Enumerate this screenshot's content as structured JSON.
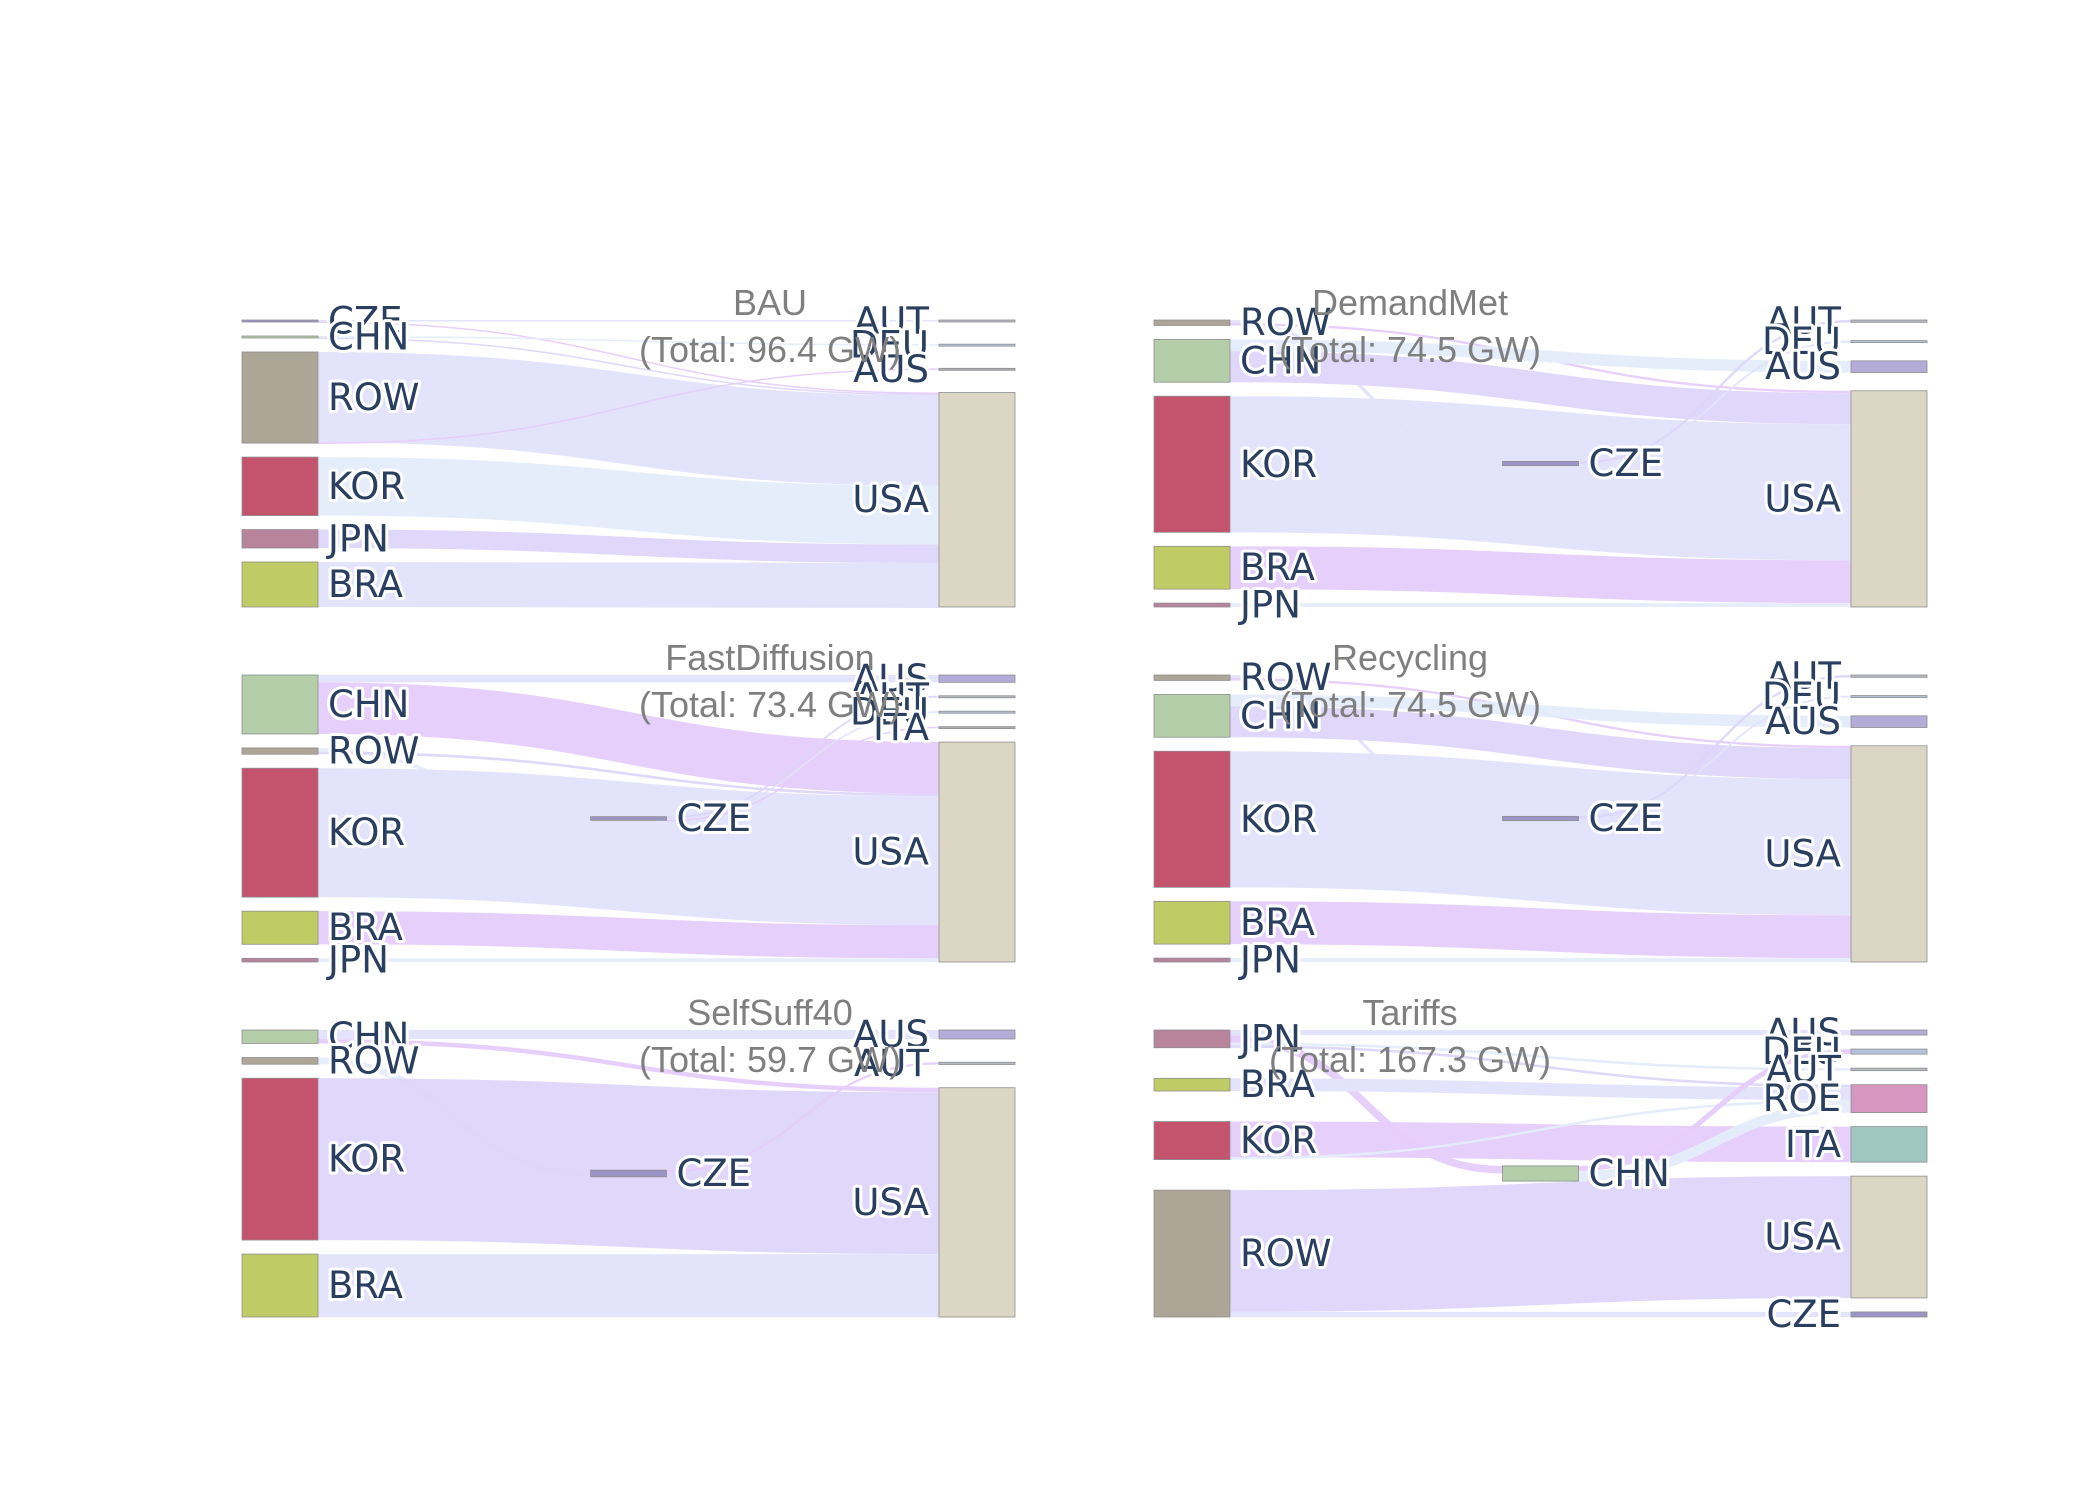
{
  "chart_data": [
    {
      "type": "sankey",
      "title": "BAU",
      "subtitle": "(Total: 96.4 GW)",
      "nodes": [
        {
          "id": "CZE",
          "label": "CZE",
          "col": 0,
          "color": "#9b94c6"
        },
        {
          "id": "CHN",
          "label": "CHN",
          "col": 0,
          "color": "#b3cea8"
        },
        {
          "id": "ROW",
          "label": "ROW",
          "col": 0,
          "color": "#ada596"
        },
        {
          "id": "KOR",
          "label": "KOR",
          "col": 0,
          "color": "#c4546e"
        },
        {
          "id": "JPN",
          "label": "JPN",
          "col": 0,
          "color": "#b7849b"
        },
        {
          "id": "BRA",
          "label": "BRA",
          "col": 0,
          "color": "#bfcb64"
        },
        {
          "id": "AUT",
          "label": "AUT",
          "col": 2,
          "color": "#b6bac4"
        },
        {
          "id": "DEU",
          "label": "DEU",
          "col": 2,
          "color": "#b3c3dc"
        },
        {
          "id": "AUS",
          "label": "AUS",
          "col": 2,
          "color": "#aaacb1"
        },
        {
          "id": "USA",
          "label": "USA",
          "col": 2,
          "color": "#dcd7c4"
        }
      ],
      "links": [
        {
          "source": "CZE",
          "target": "AUT",
          "value": 0.5
        },
        {
          "source": "CZE",
          "target": "USA",
          "value": 0.4
        },
        {
          "source": "CHN",
          "target": "DEU",
          "value": 0.3
        },
        {
          "source": "CHN",
          "target": "USA",
          "value": 0.5
        },
        {
          "source": "ROW",
          "target": "USA",
          "value": 40.2
        },
        {
          "source": "ROW",
          "target": "AUS",
          "value": 0.3
        },
        {
          "source": "KOR",
          "target": "USA",
          "value": 26
        },
        {
          "source": "JPN",
          "target": "USA",
          "value": 8.2
        },
        {
          "source": "BRA",
          "target": "USA",
          "value": 20
        }
      ]
    },
    {
      "type": "sankey",
      "title": "DemandMet",
      "subtitle": "(Total: 74.5 GW)",
      "nodes": [
        {
          "id": "ROW",
          "label": "ROW",
          "col": 0,
          "color": "#ada596"
        },
        {
          "id": "CHN",
          "label": "CHN",
          "col": 0,
          "color": "#b3cea8"
        },
        {
          "id": "KOR",
          "label": "KOR",
          "col": 0,
          "color": "#c4546e"
        },
        {
          "id": "BRA",
          "label": "BRA",
          "col": 0,
          "color": "#bfcb64"
        },
        {
          "id": "JPN",
          "label": "JPN",
          "col": 0,
          "color": "#b7849b"
        },
        {
          "id": "CZE",
          "label": "CZE",
          "col": 1,
          "color": "#9b94c6"
        },
        {
          "id": "AUT",
          "label": "AUT",
          "col": 2,
          "color": "#b6bac4"
        },
        {
          "id": "DEU",
          "label": "DEU",
          "col": 2,
          "color": "#b3c3dc"
        },
        {
          "id": "AUS",
          "label": "AUS",
          "col": 2,
          "color": "#b3acd8"
        },
        {
          "id": "USA",
          "label": "USA",
          "col": 2,
          "color": "#dcd7c4"
        }
      ],
      "links": [
        {
          "source": "ROW",
          "target": "CZE",
          "value": 0.8
        },
        {
          "source": "ROW",
          "target": "USA",
          "value": 0.6
        },
        {
          "source": "CHN",
          "target": "AUS",
          "value": 3
        },
        {
          "source": "CHN",
          "target": "USA",
          "value": 8
        },
        {
          "source": "KOR",
          "target": "USA",
          "value": 35
        },
        {
          "source": "BRA",
          "target": "USA",
          "value": 11
        },
        {
          "source": "JPN",
          "target": "USA",
          "value": 1
        },
        {
          "source": "CZE",
          "target": "AUT",
          "value": 0.6
        },
        {
          "source": "CZE",
          "target": "DEU",
          "value": 0.5
        }
      ]
    },
    {
      "type": "sankey",
      "title": "FastDiffusion",
      "subtitle": "(Total: 73.4 GW)",
      "nodes": [
        {
          "id": "CHN",
          "label": "CHN",
          "col": 0,
          "color": "#b3cea8"
        },
        {
          "id": "ROW",
          "label": "ROW",
          "col": 0,
          "color": "#ada596"
        },
        {
          "id": "KOR",
          "label": "KOR",
          "col": 0,
          "color": "#c4546e"
        },
        {
          "id": "BRA",
          "label": "BRA",
          "col": 0,
          "color": "#bfcb64"
        },
        {
          "id": "JPN",
          "label": "JPN",
          "col": 0,
          "color": "#b7849b"
        },
        {
          "id": "CZE",
          "label": "CZE",
          "col": 1,
          "color": "#9b94c6"
        },
        {
          "id": "AUS",
          "label": "AUS",
          "col": 2,
          "color": "#b3acd8"
        },
        {
          "id": "AUT",
          "label": "AUT",
          "col": 2,
          "color": "#b6bac4"
        },
        {
          "id": "DEU",
          "label": "DEU",
          "col": 2,
          "color": "#b3c3dc"
        },
        {
          "id": "ITA",
          "label": "ITA",
          "col": 2,
          "color": "#aaacb1"
        },
        {
          "id": "USA",
          "label": "USA",
          "col": 2,
          "color": "#dcd7c4"
        }
      ],
      "links": [
        {
          "source": "CHN",
          "target": "AUS",
          "value": 2
        },
        {
          "source": "CHN",
          "target": "USA",
          "value": 14
        },
        {
          "source": "ROW",
          "target": "CZE",
          "value": 1
        },
        {
          "source": "ROW",
          "target": "USA",
          "value": 0.7
        },
        {
          "source": "KOR",
          "target": "USA",
          "value": 35
        },
        {
          "source": "BRA",
          "target": "USA",
          "value": 9
        },
        {
          "source": "JPN",
          "target": "USA",
          "value": 1
        },
        {
          "source": "CZE",
          "target": "AUT",
          "value": 0.5
        },
        {
          "source": "CZE",
          "target": "DEU",
          "value": 0.3
        },
        {
          "source": "CZE",
          "target": "ITA",
          "value": 0.2
        }
      ]
    },
    {
      "type": "sankey",
      "title": "Recycling",
      "subtitle": "(Total: 74.5 GW)",
      "nodes": [
        {
          "id": "ROW",
          "label": "ROW",
          "col": 0,
          "color": "#ada596"
        },
        {
          "id": "CHN",
          "label": "CHN",
          "col": 0,
          "color": "#b3cea8"
        },
        {
          "id": "KOR",
          "label": "KOR",
          "col": 0,
          "color": "#c4546e"
        },
        {
          "id": "BRA",
          "label": "BRA",
          "col": 0,
          "color": "#bfcb64"
        },
        {
          "id": "JPN",
          "label": "JPN",
          "col": 0,
          "color": "#b7849b"
        },
        {
          "id": "CZE",
          "label": "CZE",
          "col": 1,
          "color": "#9b94c6"
        },
        {
          "id": "AUT",
          "label": "AUT",
          "col": 2,
          "color": "#b6bac4"
        },
        {
          "id": "DEU",
          "label": "DEU",
          "col": 2,
          "color": "#b3c3dc"
        },
        {
          "id": "AUS",
          "label": "AUS",
          "col": 2,
          "color": "#b3acd8"
        },
        {
          "id": "USA",
          "label": "USA",
          "col": 2,
          "color": "#dcd7c4"
        }
      ],
      "links": [
        {
          "source": "ROW",
          "target": "CZE",
          "value": 0.8
        },
        {
          "source": "ROW",
          "target": "USA",
          "value": 0.6
        },
        {
          "source": "CHN",
          "target": "AUS",
          "value": 3
        },
        {
          "source": "CHN",
          "target": "USA",
          "value": 8
        },
        {
          "source": "KOR",
          "target": "USA",
          "value": 35
        },
        {
          "source": "BRA",
          "target": "USA",
          "value": 11
        },
        {
          "source": "JPN",
          "target": "USA",
          "value": 1
        },
        {
          "source": "CZE",
          "target": "AUT",
          "value": 0.6
        },
        {
          "source": "CZE",
          "target": "DEU",
          "value": 0.5
        }
      ]
    },
    {
      "type": "sankey",
      "title": "SelfSuff40",
      "subtitle": "(Total: 59.7 GW)",
      "nodes": [
        {
          "id": "CHN",
          "label": "CHN",
          "col": 0,
          "color": "#b3cea8"
        },
        {
          "id": "ROW",
          "label": "ROW",
          "col": 0,
          "color": "#ada596"
        },
        {
          "id": "KOR",
          "label": "KOR",
          "col": 0,
          "color": "#c4546e"
        },
        {
          "id": "BRA",
          "label": "BRA",
          "col": 0,
          "color": "#bfcb64"
        },
        {
          "id": "CZE",
          "label": "CZE",
          "col": 1,
          "color": "#9b94c6"
        },
        {
          "id": "AUS",
          "label": "AUS",
          "col": 2,
          "color": "#b3acd8"
        },
        {
          "id": "AUT",
          "label": "AUT",
          "col": 2,
          "color": "#b6bac4"
        },
        {
          "id": "USA",
          "label": "USA",
          "col": 2,
          "color": "#dcd7c4"
        }
      ],
      "links": [
        {
          "source": "CHN",
          "target": "AUS",
          "value": 2
        },
        {
          "source": "CHN",
          "target": "USA",
          "value": 1
        },
        {
          "source": "ROW",
          "target": "CZE",
          "value": 1.5
        },
        {
          "source": "KOR",
          "target": "USA",
          "value": 36
        },
        {
          "source": "BRA",
          "target": "USA",
          "value": 14
        },
        {
          "source": "CZE",
          "target": "AUT",
          "value": 0.5
        }
      ]
    },
    {
      "type": "sankey",
      "title": "Tariffs",
      "subtitle": "(Total: 167.3 GW)",
      "nodes": [
        {
          "id": "JPN",
          "label": "JPN",
          "col": 0,
          "color": "#b7849b"
        },
        {
          "id": "BRA",
          "label": "BRA",
          "col": 0,
          "color": "#bfcb64"
        },
        {
          "id": "KOR",
          "label": "KOR",
          "col": 0,
          "color": "#c4546e"
        },
        {
          "id": "ROW",
          "label": "ROW",
          "col": 0,
          "color": "#ada596"
        },
        {
          "id": "CHN",
          "label": "CHN",
          "col": 1,
          "color": "#b3cea8"
        },
        {
          "id": "AUS",
          "label": "AUS",
          "col": 2,
          "color": "#b3acd8"
        },
        {
          "id": "DEU",
          "label": "DEU",
          "col": 2,
          "color": "#b3c3dc"
        },
        {
          "id": "AUT",
          "label": "AUT",
          "col": 2,
          "color": "#b6bac4"
        },
        {
          "id": "ROE",
          "label": "ROE",
          "col": 2,
          "color": "#d696bf"
        },
        {
          "id": "ITA",
          "label": "ITA",
          "col": 2,
          "color": "#9fc6c0"
        },
        {
          "id": "USA",
          "label": "USA",
          "col": 2,
          "color": "#dcd7c4"
        },
        {
          "id": "CZE",
          "label": "CZE",
          "col": 2,
          "color": "#9b94c6"
        }
      ],
      "links": [
        {
          "source": "JPN",
          "target": "AUS",
          "value": 2
        },
        {
          "source": "JPN",
          "target": "CHN",
          "value": 3
        },
        {
          "source": "JPN",
          "target": "AUT",
          "value": 1
        },
        {
          "source": "JPN",
          "target": "ROE",
          "value": 1
        },
        {
          "source": "BRA",
          "target": "ROE",
          "value": 5
        },
        {
          "source": "KOR",
          "target": "ITA",
          "value": 14
        },
        {
          "source": "KOR",
          "target": "ROE",
          "value": 1
        },
        {
          "source": "ROW",
          "target": "USA",
          "value": 48
        },
        {
          "source": "ROW",
          "target": "CZE",
          "value": 2
        },
        {
          "source": "CHN",
          "target": "DEU",
          "value": 2
        },
        {
          "source": "CHN",
          "target": "ROE",
          "value": 4
        }
      ]
    }
  ]
}
